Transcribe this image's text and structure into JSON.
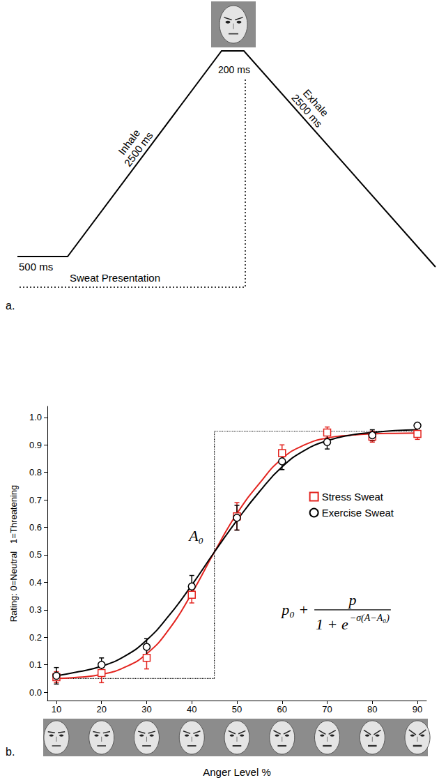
{
  "diagram": {
    "panel_label": "a.",
    "baseline_duration": "500 ms",
    "inhale_label": "Inhale",
    "inhale_duration": "2500 ms",
    "peak_duration": "200 ms",
    "exhale_label": "Exhale",
    "exhale_duration": "2500 ms",
    "stimulus_label": "Sweat Presentation"
  },
  "chart_data": {
    "type": "scatter",
    "panel_label": "b.",
    "x_label": "Anger Level %",
    "y_label": "Rating: 0=Neutral   1=Threatening",
    "xlim": [
      8,
      92
    ],
    "xticks": [
      10,
      20,
      30,
      40,
      50,
      60,
      70,
      80,
      90
    ],
    "ylim": [
      -0.03,
      1.04
    ],
    "yticks": [
      {
        "value": 0,
        "label": "0.0"
      },
      0.1,
      0.2,
      0.3,
      0.4,
      0.5,
      0.6,
      0.7,
      0.8,
      0.9,
      {
        "value": 1,
        "label": "1.0"
      }
    ],
    "grid": false,
    "legend": "right",
    "x": [
      10,
      20,
      30,
      40,
      50,
      60,
      70,
      80,
      90
    ],
    "fit_x": [
      10,
      15,
      20,
      25,
      30,
      35,
      40,
      45,
      50,
      55,
      60,
      65,
      70,
      75,
      80,
      85,
      90
    ],
    "series": [
      {
        "name": "Stress Sweat",
        "color": "#e3241f",
        "marker": "square",
        "values": [
          0.055,
          0.07,
          0.125,
          0.355,
          0.64,
          0.87,
          0.945,
          0.93,
          0.94
        ],
        "errors": [
          0.02,
          0.035,
          0.04,
          0.03,
          0.05,
          0.03,
          0.02,
          0.02,
          0.02
        ],
        "fit": [
          0.05,
          0.055,
          0.065,
          0.09,
          0.14,
          0.23,
          0.36,
          0.51,
          0.65,
          0.76,
          0.85,
          0.9,
          0.925,
          0.935,
          0.94,
          0.942,
          0.943
        ]
      },
      {
        "name": "Exercise Sweat",
        "color": "#000000",
        "marker": "circle",
        "values": [
          0.06,
          0.1,
          0.165,
          0.385,
          0.635,
          0.84,
          0.91,
          0.935,
          0.97
        ],
        "errors": [
          0.03,
          0.025,
          0.03,
          0.04,
          0.045,
          0.03,
          0.025,
          0.02,
          0.01
        ],
        "fit": [
          0.06,
          0.075,
          0.095,
          0.13,
          0.19,
          0.28,
          0.39,
          0.51,
          0.625,
          0.73,
          0.82,
          0.88,
          0.915,
          0.935,
          0.945,
          0.952,
          0.955
        ]
      }
    ],
    "threshold": {
      "x": [
        10,
        45,
        45,
        90
      ],
      "values": [
        0.05,
        0.05,
        0.95,
        0.95
      ],
      "line_style": "dotted",
      "color": "#000000"
    },
    "annotations": [
      {
        "text": "A₀",
        "x": 41,
        "y": 0.57
      }
    ],
    "formula": {
      "lead": "p₀ +",
      "numerator": "p",
      "denominator": "1 + e",
      "exponent": "−σ(A−A₀)",
      "x": 72,
      "y": 0.3
    }
  }
}
